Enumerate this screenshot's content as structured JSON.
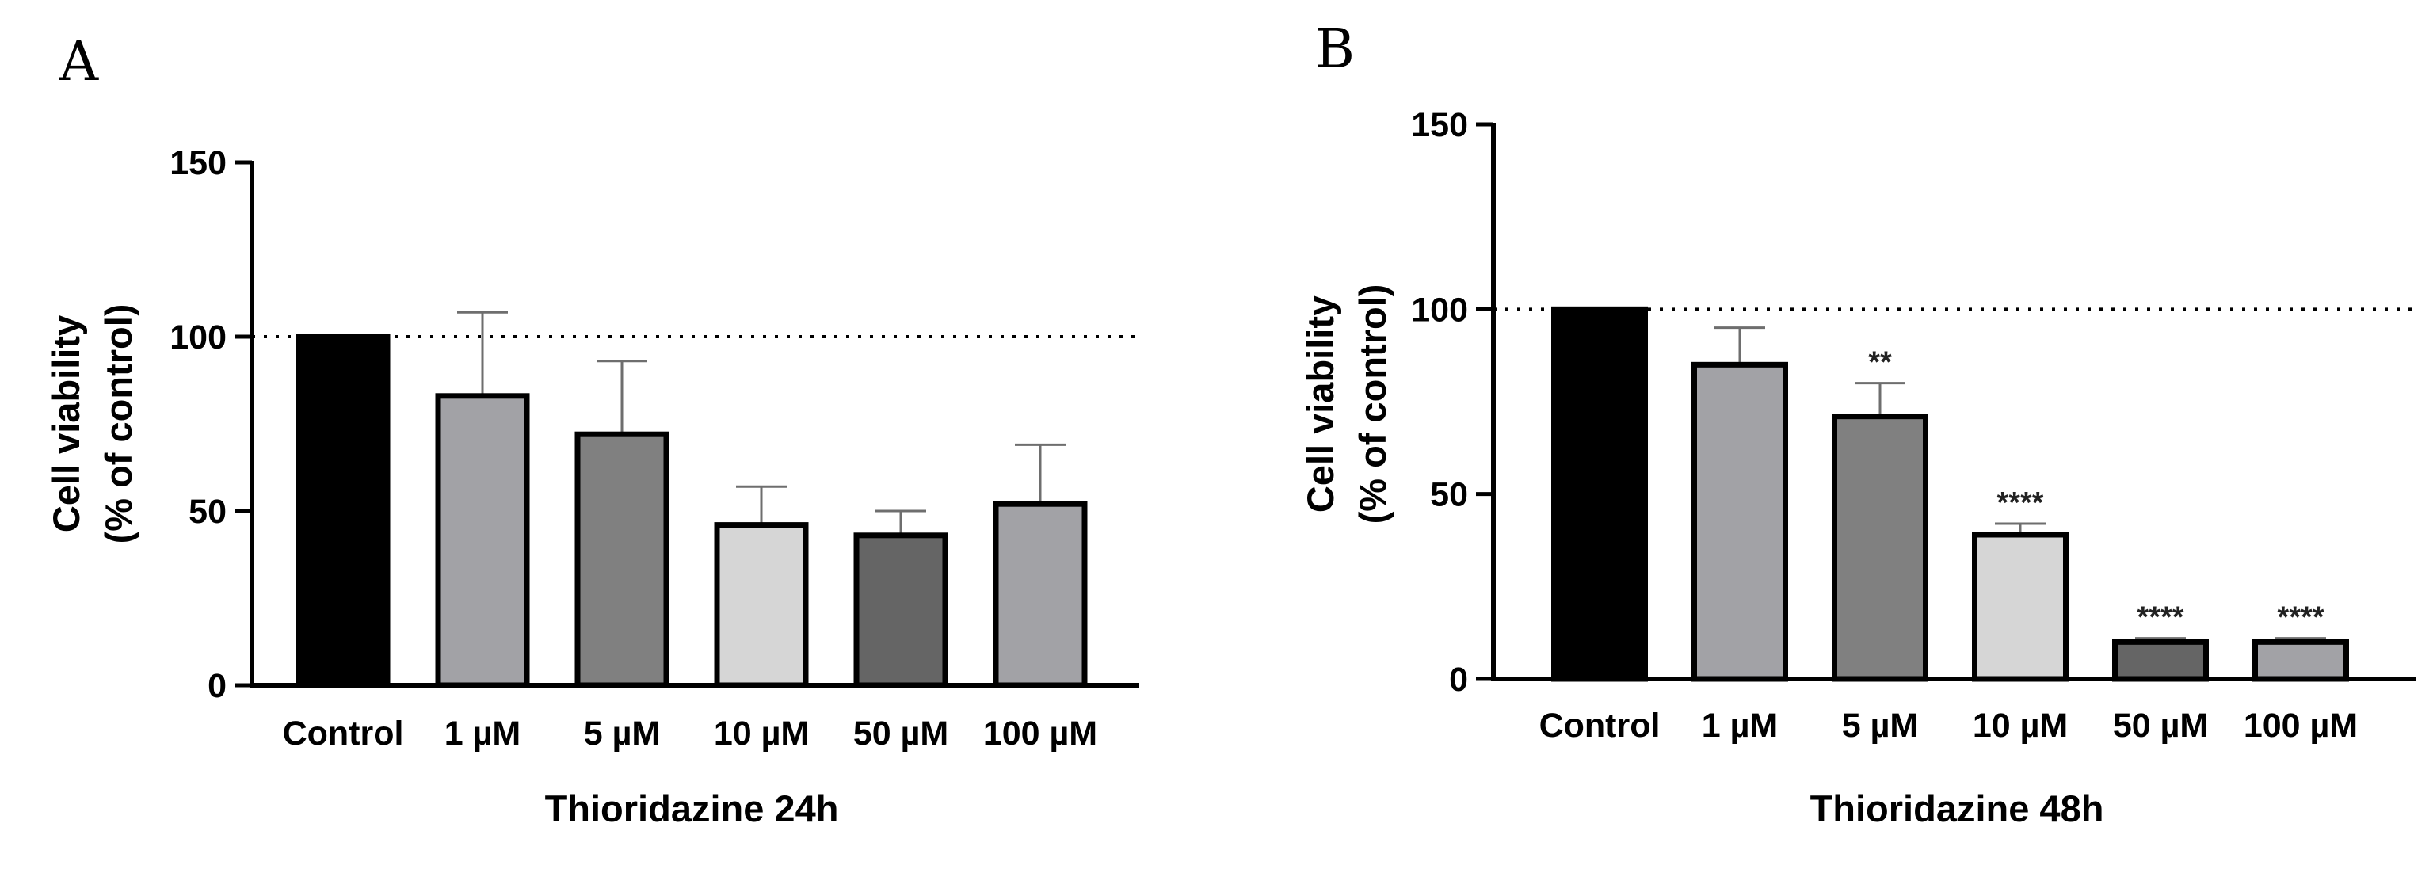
{
  "chart_data": [
    {
      "type": "bar",
      "panel": "A",
      "xlabel": "Thioridazine 24h",
      "ylabel": [
        "Cell viability",
        "(% of control)"
      ],
      "ylim": [
        0,
        150
      ],
      "yticks": [
        0,
        50,
        100,
        150
      ],
      "reference_line": 100,
      "categories": [
        "Control",
        "1 µM",
        "5 µM",
        "10 µM",
        "50 µM",
        "100 µM"
      ],
      "values": [
        100,
        83,
        72,
        46,
        43,
        52
      ],
      "errors": [
        0,
        24,
        21,
        11,
        7,
        17
      ],
      "significance": [
        "",
        "",
        "",
        "",
        "",
        ""
      ],
      "colors": [
        "#000000",
        "#a2a2a6",
        "#808080",
        "#d6d6d6",
        "#656565",
        "#a2a2a6"
      ]
    },
    {
      "type": "bar",
      "panel": "B",
      "xlabel": "Thioridazine 48h",
      "ylabel": [
        "Cell viability",
        "(% of control)"
      ],
      "ylim": [
        0,
        150
      ],
      "yticks": [
        0,
        50,
        100,
        150
      ],
      "reference_line": 100,
      "categories": [
        "Control",
        "1 µM",
        "5 µM",
        "10 µM",
        "50 µM",
        "100 µM"
      ],
      "values": [
        100,
        85,
        71,
        39,
        10,
        10
      ],
      "errors": [
        0,
        10,
        9,
        3,
        1,
        1
      ],
      "significance": [
        "",
        "",
        "**",
        "****",
        "****",
        "****"
      ],
      "colors": [
        "#000000",
        "#a2a2a6",
        "#808080",
        "#d6d6d6",
        "#656565",
        "#a2a2a6"
      ]
    }
  ]
}
